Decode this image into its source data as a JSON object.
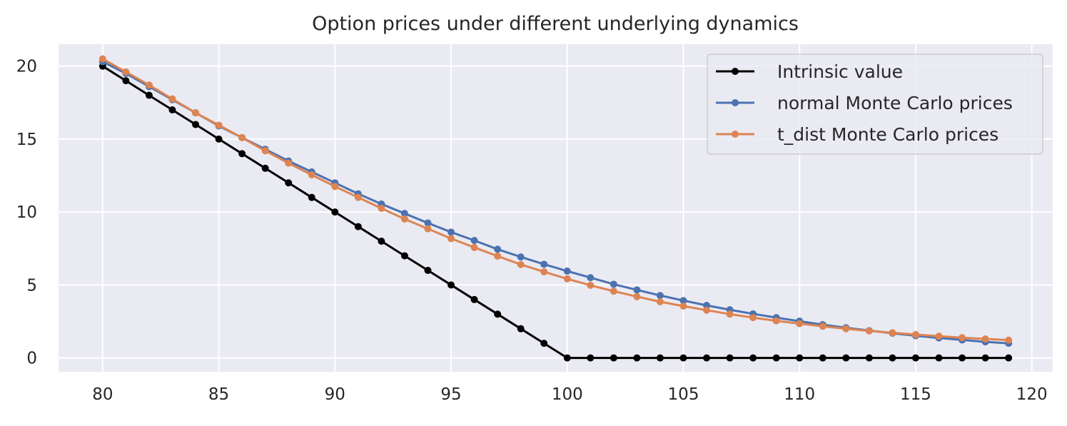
{
  "chart_data": {
    "type": "line",
    "title": "Option prices under different underlying dynamics",
    "xlabel": "",
    "ylabel": "",
    "xlim": [
      78.1,
      120.9
    ],
    "ylim": [
      -0.95,
      21.5
    ],
    "xticks": [
      80,
      85,
      90,
      95,
      100,
      105,
      110,
      115,
      120
    ],
    "yticks": [
      0,
      5,
      10,
      15,
      20
    ],
    "grid": true,
    "legend_position": "top-right",
    "x": [
      80,
      81,
      82,
      83,
      84,
      85,
      86,
      87,
      88,
      89,
      90,
      91,
      92,
      93,
      94,
      95,
      96,
      97,
      98,
      99,
      100,
      101,
      102,
      103,
      104,
      105,
      106,
      107,
      108,
      109,
      110,
      111,
      112,
      113,
      114,
      115,
      116,
      117,
      118,
      119
    ],
    "series": [
      {
        "name": "Intrinsic value",
        "color": "#000000",
        "values": [
          20,
          19,
          18,
          17,
          16,
          15,
          14,
          13,
          12,
          11,
          10,
          9,
          8,
          7,
          6,
          5,
          4,
          3,
          2,
          1,
          0,
          0,
          0,
          0,
          0,
          0,
          0,
          0,
          0,
          0,
          0,
          0,
          0,
          0,
          0,
          0,
          0,
          0,
          0,
          0
        ]
      },
      {
        "name": "normal Monte Carlo prices",
        "color": "#4c72b0",
        "values": [
          20.3,
          19.5,
          18.6,
          17.7,
          16.8,
          15.9,
          15.1,
          14.3,
          13.5,
          12.75,
          12.0,
          11.25,
          10.55,
          9.9,
          9.25,
          8.62,
          8.05,
          7.45,
          6.92,
          6.42,
          5.95,
          5.5,
          5.05,
          4.66,
          4.28,
          3.93,
          3.6,
          3.3,
          3.02,
          2.76,
          2.52,
          2.28,
          2.07,
          1.87,
          1.69,
          1.52,
          1.37,
          1.23,
          1.1,
          1.0
        ]
      },
      {
        "name": "t_dist Monte Carlo prices",
        "color": "#dd8452",
        "values": [
          20.5,
          19.6,
          18.7,
          17.75,
          16.8,
          15.95,
          15.1,
          14.2,
          13.35,
          12.55,
          11.75,
          11.0,
          10.25,
          9.52,
          8.85,
          8.18,
          7.57,
          6.98,
          6.4,
          5.9,
          5.42,
          4.98,
          4.57,
          4.2,
          3.85,
          3.55,
          3.27,
          3.0,
          2.76,
          2.54,
          2.35,
          2.17,
          2.0,
          1.85,
          1.72,
          1.6,
          1.49,
          1.39,
          1.3,
          1.22
        ]
      }
    ]
  }
}
